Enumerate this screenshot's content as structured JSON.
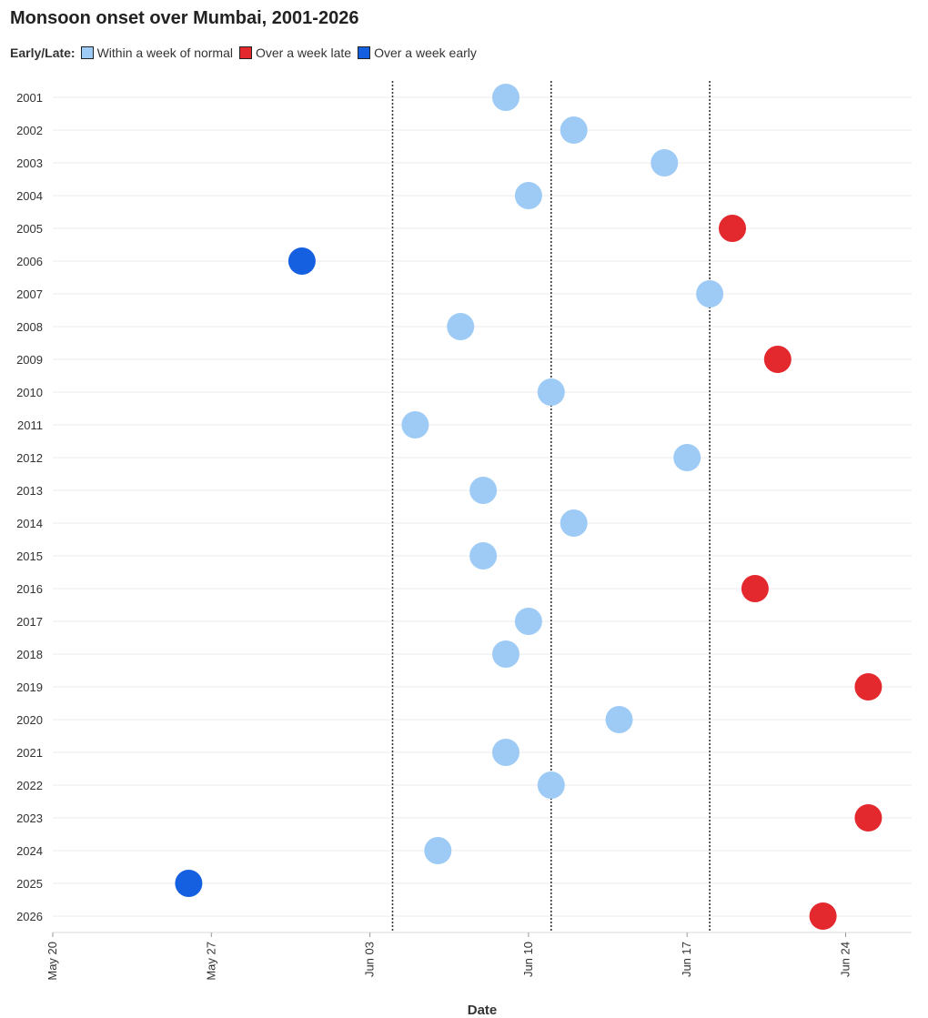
{
  "chart_data": {
    "type": "scatter",
    "title": "Monsoon onset over Mumbai, 2001-2026",
    "xlabel": "Date",
    "ylabel": "",
    "legend": {
      "title": "Early/Late:",
      "placement": "top-left",
      "items": [
        {
          "key": "normal",
          "label": "Within a week of normal",
          "color": "#9ecbf6"
        },
        {
          "key": "late",
          "label": "Over a week late",
          "color": "#e3282e"
        },
        {
          "key": "early",
          "label": "Over a week early",
          "color": "#1560e0"
        }
      ]
    },
    "x_ticks": [
      "May 20",
      "May 27",
      "Jun 03",
      "Jun 10",
      "Jun 17",
      "Jun 24"
    ],
    "xlim": [
      "May 20",
      "Jun 27"
    ],
    "reference_lines": [
      "Jun 04",
      "Jun 11",
      "Jun 18"
    ],
    "grid": "horizontal",
    "points": [
      {
        "year": "2001",
        "date": "Jun 09",
        "category": "normal"
      },
      {
        "year": "2002",
        "date": "Jun 12",
        "category": "normal"
      },
      {
        "year": "2003",
        "date": "Jun 16",
        "category": "normal"
      },
      {
        "year": "2004",
        "date": "Jun 10",
        "category": "normal"
      },
      {
        "year": "2005",
        "date": "Jun 19",
        "category": "late"
      },
      {
        "year": "2006",
        "date": "May 31",
        "category": "early"
      },
      {
        "year": "2007",
        "date": "Jun 18",
        "category": "normal"
      },
      {
        "year": "2008",
        "date": "Jun 07",
        "category": "normal"
      },
      {
        "year": "2009",
        "date": "Jun 21",
        "category": "late"
      },
      {
        "year": "2010",
        "date": "Jun 11",
        "category": "normal"
      },
      {
        "year": "2011",
        "date": "Jun 05",
        "category": "normal"
      },
      {
        "year": "2012",
        "date": "Jun 17",
        "category": "normal"
      },
      {
        "year": "2013",
        "date": "Jun 08",
        "category": "normal"
      },
      {
        "year": "2014",
        "date": "Jun 12",
        "category": "normal"
      },
      {
        "year": "2015",
        "date": "Jun 08",
        "category": "normal"
      },
      {
        "year": "2016",
        "date": "Jun 20",
        "category": "late"
      },
      {
        "year": "2017",
        "date": "Jun 10",
        "category": "normal"
      },
      {
        "year": "2018",
        "date": "Jun 09",
        "category": "normal"
      },
      {
        "year": "2019",
        "date": "Jun 25",
        "category": "late"
      },
      {
        "year": "2020",
        "date": "Jun 14",
        "category": "normal"
      },
      {
        "year": "2021",
        "date": "Jun 09",
        "category": "normal"
      },
      {
        "year": "2022",
        "date": "Jun 11",
        "category": "normal"
      },
      {
        "year": "2023",
        "date": "Jun 25",
        "category": "late"
      },
      {
        "year": "2024",
        "date": "Jun 06",
        "category": "normal"
      },
      {
        "year": "2025",
        "date": "May 26",
        "category": "early"
      },
      {
        "year": "2026",
        "date": "Jun 23",
        "category": "late"
      }
    ]
  }
}
